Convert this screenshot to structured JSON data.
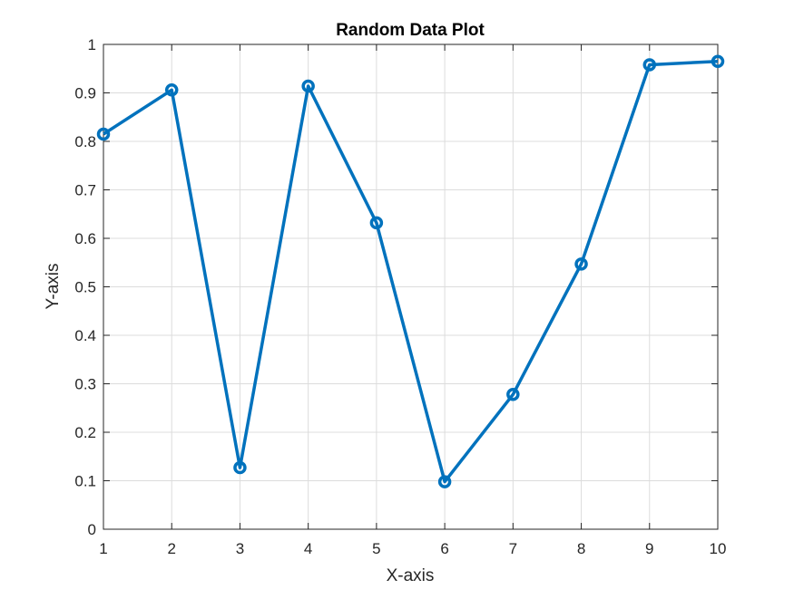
{
  "chart_data": {
    "type": "line",
    "title": "Random Data Plot",
    "xlabel": "X-axis",
    "ylabel": "Y-axis",
    "xlim": [
      1,
      10
    ],
    "ylim": [
      0,
      1
    ],
    "xticks": [
      "1",
      "2",
      "3",
      "4",
      "5",
      "6",
      "7",
      "8",
      "9",
      "10"
    ],
    "yticks": [
      "0",
      "0.1",
      "0.2",
      "0.3",
      "0.4",
      "0.5",
      "0.6",
      "0.7",
      "0.8",
      "0.9",
      "1"
    ],
    "grid": true,
    "marker": "circle",
    "line_color": "#0072BD",
    "series": [
      {
        "x": [
          1,
          2,
          3,
          4,
          5,
          6,
          7,
          8,
          9,
          10
        ],
        "values": [
          0.815,
          0.906,
          0.127,
          0.914,
          0.632,
          0.098,
          0.278,
          0.547,
          0.958,
          0.965
        ]
      }
    ]
  }
}
